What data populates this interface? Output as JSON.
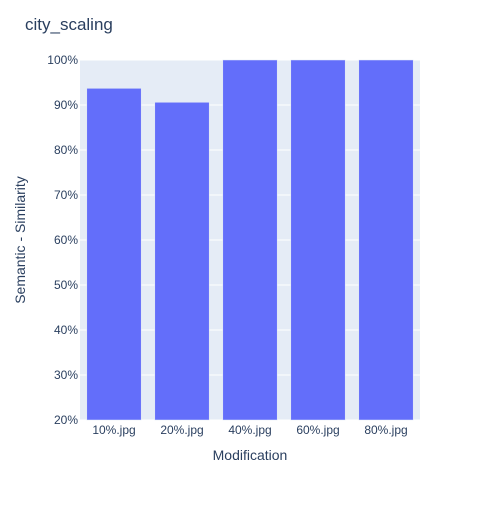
{
  "chart_data": {
    "type": "bar",
    "title": "city_scaling",
    "xlabel": "Modification",
    "ylabel": "Semantic - Similarity",
    "categories": [
      "10%.jpg",
      "20%.jpg",
      "40%.jpg",
      "60%.jpg",
      "80%.jpg"
    ],
    "values": [
      0.937,
      0.906,
      1.0,
      1.0,
      1.0
    ],
    "ylim": [
      0.2,
      1.0
    ],
    "yticks": [
      0.2,
      0.3,
      0.4,
      0.5,
      0.6,
      0.7,
      0.8,
      0.9,
      1.0
    ],
    "ytick_labels": [
      "20%",
      "30%",
      "40%",
      "50%",
      "60%",
      "70%",
      "80%",
      "90%",
      "100%"
    ],
    "grid": true,
    "legend": "none"
  },
  "colors": {
    "bar": "#636efa",
    "plot_background": "#e5ecf6",
    "grid": "#ffffff",
    "text": "#2a3f5f",
    "title": "#2a3f5f"
  }
}
